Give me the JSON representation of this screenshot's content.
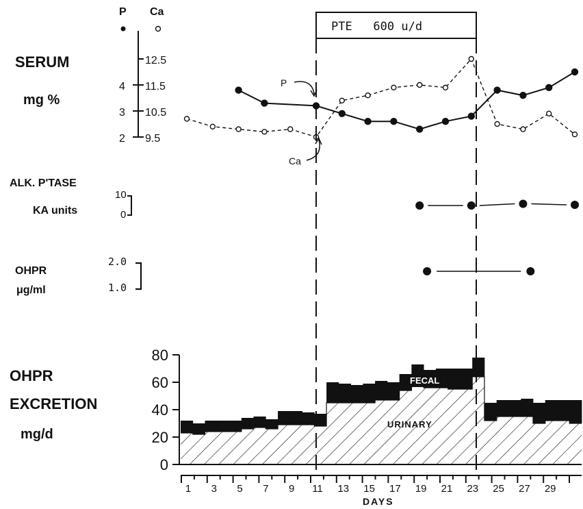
{
  "chart_data": [
    {
      "type": "line",
      "title": "SERUM",
      "ylabel": "mg %",
      "axis_headers": [
        "P",
        "Ca"
      ],
      "p_ticks": [
        "4",
        "3",
        "2"
      ],
      "ca_ticks": [
        "12.5",
        "11.5",
        "10.5",
        "9.5"
      ],
      "p_ylim": [
        2,
        4
      ],
      "ca_ylim": [
        9.5,
        12.5
      ],
      "series": [
        {
          "name": "P",
          "marker": "filled",
          "x": [
            5,
            7,
            11,
            13,
            15,
            17,
            19,
            21,
            23,
            25,
            27,
            29,
            31
          ],
          "values": [
            3.8,
            3.3,
            3.2,
            2.9,
            2.6,
            2.6,
            2.3,
            2.6,
            2.8,
            3.8,
            3.6,
            3.9,
            4.5
          ]
        },
        {
          "name": "Ca",
          "marker": "open",
          "x": [
            1,
            3,
            5,
            7,
            9,
            11,
            13,
            15,
            17,
            19,
            21,
            23,
            25,
            27,
            29,
            31
          ],
          "values": [
            10.2,
            9.9,
            9.8,
            9.7,
            9.8,
            9.5,
            10.9,
            11.1,
            11.4,
            11.5,
            11.4,
            12.5,
            10.0,
            9.8,
            10.4,
            9.6
          ]
        }
      ],
      "annotations": [
        "P",
        "Ca"
      ]
    },
    {
      "type": "line",
      "title": "ALK. P'TASE",
      "ylabel": "KA units",
      "ticks": [
        "10",
        "0"
      ],
      "x": [
        19,
        23,
        27,
        31
      ],
      "values": [
        5,
        5,
        5.5,
        5.2
      ]
    },
    {
      "type": "line",
      "title": "OHPR",
      "ylabel": "μg/ml",
      "ticks": [
        "2.0",
        "1.0"
      ],
      "x": [
        20,
        28
      ],
      "values": [
        1.5,
        1.5
      ]
    },
    {
      "type": "bar",
      "title": "OHPR EXCRETION",
      "ylabel": "mg/d",
      "xlabel": "DAYS",
      "yticks": [
        "80",
        "60",
        "40",
        "20",
        "0"
      ],
      "ylim": [
        0,
        80
      ],
      "xticks": [
        "1",
        "3",
        "5",
        "7",
        "9",
        "11",
        "13",
        "15",
        "17",
        "19",
        "21",
        "23",
        "25",
        "27",
        "29"
      ],
      "x_start_day": 0.5,
      "series": [
        {
          "name": "URINARY",
          "values": [
            23,
            22,
            24,
            24,
            24,
            26,
            27,
            26,
            29,
            29,
            29,
            28,
            45,
            45,
            45,
            45,
            47,
            47,
            54,
            58,
            56,
            56,
            55,
            55,
            64,
            32,
            35,
            35,
            35,
            30,
            32,
            32,
            30
          ]
        },
        {
          "name": "FECAL",
          "values": [
            9,
            8,
            8,
            8,
            8,
            8,
            8,
            7,
            10,
            10,
            9,
            9,
            15,
            14,
            13,
            14,
            14,
            13,
            12,
            15,
            13,
            14,
            15,
            15,
            14,
            13,
            12,
            12,
            13,
            15,
            15,
            15,
            17
          ]
        }
      ],
      "period": {
        "label": "PTE   600 u/d",
        "start_day": 11,
        "end_day": 23
      }
    }
  ]
}
